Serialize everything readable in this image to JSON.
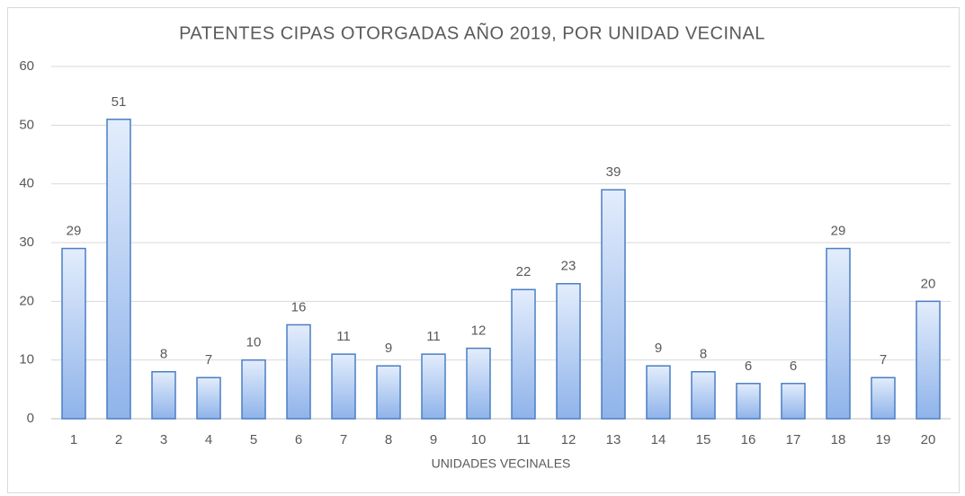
{
  "chart_data": {
    "type": "bar",
    "title": "PATENTES CIPAS OTORGADAS AÑO 2019, POR UNIDAD VECINAL",
    "x_label": "UNIDADES VECINALES",
    "categories": [
      "1",
      "2",
      "3",
      "4",
      "5",
      "6",
      "7",
      "8",
      "9",
      "10",
      "11",
      "12",
      "13",
      "14",
      "15",
      "16",
      "17",
      "18",
      "19",
      "20"
    ],
    "values": [
      29,
      51,
      8,
      7,
      10,
      16,
      11,
      9,
      11,
      12,
      22,
      23,
      39,
      9,
      8,
      6,
      6,
      29,
      7,
      20
    ],
    "color": "#4a7ec4",
    "ylim": [
      0,
      60
    ],
    "yticks": [
      0,
      10,
      20,
      30,
      40,
      50,
      60
    ],
    "grid": true,
    "data_labels": true
  }
}
